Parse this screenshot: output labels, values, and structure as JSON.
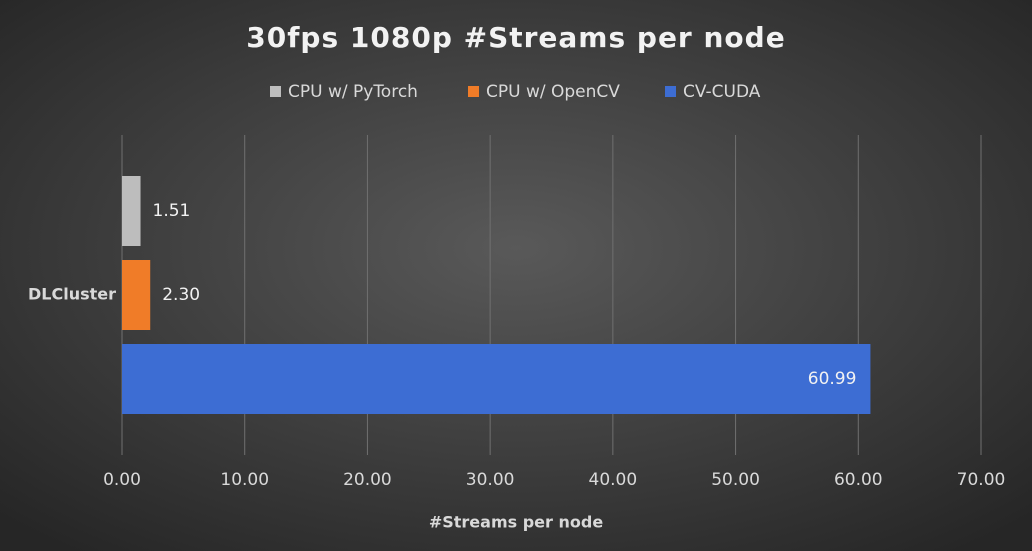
{
  "chart_data": {
    "type": "bar",
    "orientation": "horizontal",
    "title": "30fps 1080p #Streams per node",
    "x_label": "#Streams per node",
    "categories": [
      "DLCluster"
    ],
    "series": [
      {
        "name": "CPU w/ PyTorch",
        "color": "#bdbdbd",
        "values": [
          1.51
        ],
        "value_labels": [
          "1.51"
        ]
      },
      {
        "name": "CPU w/ OpenCV",
        "color": "#f07c28",
        "values": [
          2.3
        ],
        "value_labels": [
          "2.30"
        ]
      },
      {
        "name": "CV-CUDA",
        "color": "#3d6dd3",
        "values": [
          60.99
        ],
        "value_labels": [
          "60.99"
        ]
      }
    ],
    "xlim": [
      0,
      70
    ],
    "xticks": [
      {
        "value": 0,
        "label": "0.00"
      },
      {
        "value": 10,
        "label": "10.00"
      },
      {
        "value": 20,
        "label": "20.00"
      },
      {
        "value": 30,
        "label": "30.00"
      },
      {
        "value": 40,
        "label": "40.00"
      },
      {
        "value": 50,
        "label": "50.00"
      },
      {
        "value": 60,
        "label": "60.00"
      },
      {
        "value": 70,
        "label": "70.00"
      }
    ],
    "grid": true,
    "legend": "top"
  }
}
